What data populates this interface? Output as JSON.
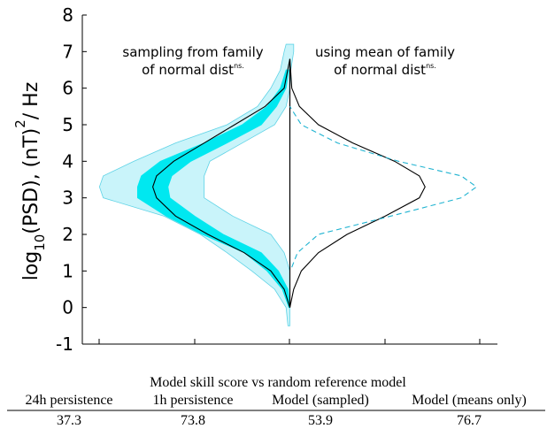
{
  "chart_data": {
    "type": "violin",
    "ylabel": {
      "pre": "log",
      "sub": "10",
      "mid": "(PSD), (nT)",
      "sup": "2",
      "post": "/ Hz"
    },
    "annotations": [
      {
        "line1": "sampling from family",
        "line2": "of normal dist",
        "sup": "ns."
      },
      {
        "line1": "using mean of family",
        "line2": "of normal dist",
        "sup": "ns."
      }
    ],
    "ylim": [
      -1,
      8
    ],
    "yticks": [
      -1,
      0,
      1,
      2,
      3,
      4,
      5,
      6,
      7,
      8
    ],
    "xlim": [
      -1.09,
      1.09
    ],
    "bands": [
      {
        "color": "#c9f4fa",
        "edge": "#5fd3e6",
        "y": [
          -0.5,
          0,
          0.5,
          1,
          1.5,
          2,
          2.5,
          3,
          3.3,
          3.6,
          4,
          4.5,
          5,
          5.5,
          6,
          6.5,
          7,
          7.2
        ],
        "low": [
          -0.01,
          -0.02,
          -0.08,
          -0.2,
          -0.33,
          -0.47,
          -0.66,
          -0.98,
          -1.0,
          -0.98,
          -0.82,
          -0.6,
          -0.33,
          -0.17,
          -0.1,
          -0.05,
          -0.03,
          -0.02
        ],
        "high": [
          0,
          0,
          0,
          0,
          -0.03,
          -0.1,
          -0.3,
          -0.45,
          -0.45,
          -0.45,
          -0.42,
          -0.25,
          -0.08,
          -0.02,
          0,
          0.005,
          0.02,
          0.02
        ]
      },
      {
        "color": "#00e8f0",
        "edge": "#00e8f0",
        "y": [
          0,
          0.5,
          1,
          1.5,
          2,
          2.5,
          3,
          3.3,
          3.6,
          4,
          4.5,
          5,
          5.5,
          6,
          6.5
        ],
        "low": [
          -0.005,
          -0.04,
          -0.12,
          -0.24,
          -0.46,
          -0.65,
          -0.8,
          -0.8,
          -0.78,
          -0.68,
          -0.45,
          -0.25,
          -0.12,
          -0.05,
          -0.02
        ],
        "high": [
          0,
          -0.01,
          -0.06,
          -0.15,
          -0.35,
          -0.5,
          -0.63,
          -0.64,
          -0.62,
          -0.52,
          -0.33,
          -0.15,
          -0.07,
          -0.02,
          -0.005
        ]
      }
    ],
    "lines": [
      {
        "color": "#000000",
        "dashed": false,
        "y": [
          0,
          0.5,
          1,
          1.5,
          2,
          2.5,
          3,
          3.3,
          3.6,
          4,
          4.5,
          5,
          5.5,
          6,
          6.8
        ],
        "x": [
          0,
          -0.03,
          -0.1,
          -0.24,
          -0.43,
          -0.6,
          -0.7,
          -0.72,
          -0.7,
          -0.61,
          -0.45,
          -0.29,
          -0.13,
          -0.03,
          0
        ]
      },
      {
        "color": "#000000",
        "dashed": false,
        "y": [
          0,
          0.5,
          1,
          1.5,
          2,
          2.5,
          3,
          3.3,
          3.6,
          4,
          4.5,
          5,
          5.5,
          6,
          6.8
        ],
        "x": [
          0,
          0.02,
          0.06,
          0.15,
          0.3,
          0.5,
          0.68,
          0.71,
          0.68,
          0.55,
          0.33,
          0.15,
          0.05,
          0.01,
          0
        ]
      },
      {
        "color": "#1fb3d1",
        "dashed": true,
        "y": [
          1.1,
          1.5,
          2,
          2.5,
          3,
          3.3,
          3.6,
          4,
          4.5,
          5,
          5.5
        ],
        "x": [
          0.01,
          0.04,
          0.15,
          0.53,
          0.9,
          0.98,
          0.9,
          0.57,
          0.25,
          0.06,
          0
        ]
      }
    ]
  },
  "table": {
    "title": "Model skill score vs random reference model",
    "headers": [
      "24h persistence",
      "1h persistence",
      "Model (sampled)",
      "Model (means only)"
    ],
    "rows": [
      [
        37.3,
        73.8,
        53.9,
        76.7
      ]
    ]
  }
}
